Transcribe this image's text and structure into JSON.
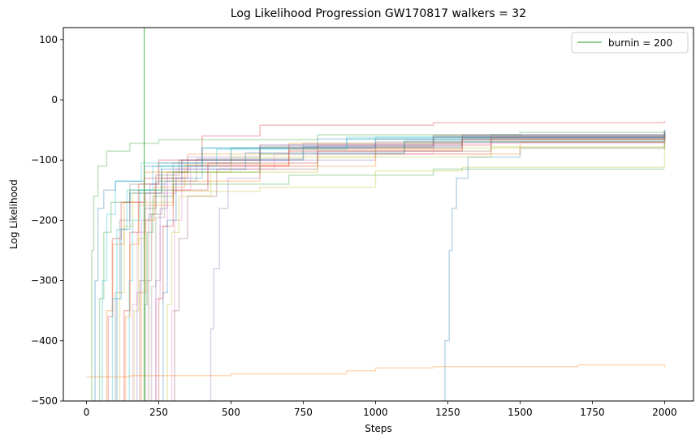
{
  "chart_data": {
    "type": "line",
    "title": "Log Likelihood Progression GW170817 walkers = 32",
    "xlabel": "Steps",
    "ylabel": "Log Likelihood",
    "xlim": [
      -80,
      2100
    ],
    "ylim": [
      -500,
      120
    ],
    "xticks": [
      0,
      250,
      500,
      750,
      1000,
      1250,
      1500,
      1750,
      2000
    ],
    "yticks": [
      -500,
      -400,
      -300,
      -200,
      -100,
      0,
      100
    ],
    "xtick_labels": [
      "0",
      "250",
      "500",
      "750",
      "1000",
      "1250",
      "1500",
      "1750",
      "2000"
    ],
    "ytick_labels": [
      "−500",
      "−400",
      "−300",
      "−200",
      "−100",
      "0",
      "100"
    ],
    "grid": false,
    "legend": {
      "position": "top-right",
      "entries": [
        "burnin = 200"
      ]
    },
    "burnin": {
      "x": 200,
      "label": "burnin = 200",
      "color": "#2ca02c"
    },
    "series_opacity": 0.3,
    "series": [
      {
        "color": "#1f77b4",
        "points": [
          [
            25,
            -500
          ],
          [
            30,
            -300
          ],
          [
            40,
            -180
          ],
          [
            60,
            -150
          ],
          [
            100,
            -135
          ],
          [
            200,
            -110
          ],
          [
            400,
            -80
          ],
          [
            800,
            -65
          ],
          [
            1400,
            -58
          ],
          [
            2000,
            -55
          ]
        ]
      },
      {
        "color": "#ff7f0e",
        "points": [
          [
            60,
            -500
          ],
          [
            70,
            -350
          ],
          [
            90,
            -240
          ],
          [
            130,
            -170
          ],
          [
            200,
            -120
          ],
          [
            350,
            -90
          ],
          [
            700,
            -72
          ],
          [
            1300,
            -62
          ],
          [
            2000,
            -58
          ]
        ]
      },
      {
        "color": "#2ca02c",
        "points": [
          [
            15,
            -500
          ],
          [
            18,
            -250
          ],
          [
            25,
            -160
          ],
          [
            40,
            -110
          ],
          [
            70,
            -85
          ],
          [
            150,
            -72
          ],
          [
            250,
            -66
          ],
          [
            800,
            -58
          ],
          [
            1500,
            -54
          ],
          [
            2000,
            -52
          ]
        ]
      },
      {
        "color": "#d62728",
        "points": [
          [
            120,
            -500
          ],
          [
            130,
            -350
          ],
          [
            150,
            -220
          ],
          [
            180,
            -140
          ],
          [
            250,
            -100
          ],
          [
            400,
            -60
          ],
          [
            600,
            -42
          ],
          [
            1200,
            -38
          ],
          [
            2000,
            -35
          ]
        ]
      },
      {
        "color": "#9467bd",
        "points": [
          [
            230,
            -500
          ],
          [
            240,
            -300
          ],
          [
            255,
            -180
          ],
          [
            280,
            -120
          ],
          [
            350,
            -95
          ],
          [
            600,
            -75
          ],
          [
            1200,
            -62
          ],
          [
            2000,
            -56
          ]
        ]
      },
      {
        "color": "#8c564b",
        "points": [
          [
            210,
            -500
          ],
          [
            215,
            -300
          ],
          [
            225,
            -190
          ],
          [
            260,
            -130
          ],
          [
            330,
            -100
          ],
          [
            600,
            -80
          ],
          [
            1200,
            -60
          ],
          [
            2000,
            -50
          ]
        ]
      },
      {
        "color": "#e377c2",
        "points": [
          [
            290,
            -500
          ],
          [
            295,
            -350
          ],
          [
            305,
            -200
          ],
          [
            330,
            -140
          ],
          [
            420,
            -110
          ],
          [
            800,
            -90
          ],
          [
            1400,
            -70
          ],
          [
            2000,
            -60
          ]
        ]
      },
      {
        "color": "#7f7f7f",
        "points": [
          [
            95,
            -500
          ],
          [
            100,
            -320
          ],
          [
            115,
            -200
          ],
          [
            150,
            -140
          ],
          [
            250,
            -105
          ],
          [
            500,
            -80
          ],
          [
            1000,
            -65
          ],
          [
            2000,
            -55
          ]
        ]
      },
      {
        "color": "#bcbd22",
        "points": [
          [
            160,
            -500
          ],
          [
            165,
            -350
          ],
          [
            180,
            -230
          ],
          [
            200,
            -170
          ],
          [
            300,
            -152
          ],
          [
            600,
            -145
          ],
          [
            1000,
            -118
          ],
          [
            1300,
            -112
          ],
          [
            2000,
            -65
          ]
        ]
      },
      {
        "color": "#17becf",
        "points": [
          [
            140,
            -500
          ],
          [
            148,
            -300
          ],
          [
            160,
            -200
          ],
          [
            185,
            -150
          ],
          [
            260,
            -110
          ],
          [
            500,
            -80
          ],
          [
            1000,
            -62
          ],
          [
            2000,
            -55
          ]
        ]
      },
      {
        "color": "#1f77b4",
        "points": [
          [
            1230,
            -500
          ],
          [
            1240,
            -400
          ],
          [
            1255,
            -250
          ],
          [
            1265,
            -180
          ],
          [
            1280,
            -130
          ],
          [
            1320,
            -95
          ],
          [
            1500,
            -80
          ],
          [
            2000,
            -70
          ]
        ]
      },
      {
        "color": "#ff7f0e",
        "points": [
          [
            0,
            -460
          ],
          [
            150,
            -458
          ],
          [
            500,
            -455
          ],
          [
            900,
            -450
          ],
          [
            1000,
            -445
          ],
          [
            1200,
            -443
          ],
          [
            1700,
            -440
          ],
          [
            1950,
            -440
          ],
          [
            2000,
            -444
          ]
        ]
      },
      {
        "color": "#2ca02c",
        "points": [
          [
            40,
            -500
          ],
          [
            45,
            -330
          ],
          [
            60,
            -220
          ],
          [
            85,
            -170
          ],
          [
            150,
            -150
          ],
          [
            300,
            -140
          ],
          [
            700,
            -125
          ],
          [
            1200,
            -115
          ],
          [
            2000,
            -115
          ]
        ]
      },
      {
        "color": "#d62728",
        "points": [
          [
            70,
            -500
          ],
          [
            75,
            -360
          ],
          [
            90,
            -230
          ],
          [
            120,
            -170
          ],
          [
            200,
            -130
          ],
          [
            350,
            -110
          ],
          [
            700,
            -85
          ],
          [
            1300,
            -65
          ],
          [
            2000,
            -55
          ]
        ]
      },
      {
        "color": "#9467bd",
        "points": [
          [
            425,
            -500
          ],
          [
            430,
            -380
          ],
          [
            440,
            -280
          ],
          [
            460,
            -180
          ],
          [
            490,
            -130
          ],
          [
            600,
            -100
          ],
          [
            1000,
            -70
          ],
          [
            2000,
            -52
          ]
        ]
      },
      {
        "color": "#8c564b",
        "points": [
          [
            180,
            -500
          ],
          [
            185,
            -300
          ],
          [
            200,
            -180
          ],
          [
            240,
            -125
          ],
          [
            320,
            -100
          ],
          [
            600,
            -78
          ],
          [
            1200,
            -62
          ],
          [
            2000,
            -54
          ]
        ]
      },
      {
        "color": "#e377c2",
        "points": [
          [
            235,
            -500
          ],
          [
            240,
            -330
          ],
          [
            255,
            -210
          ],
          [
            280,
            -150
          ],
          [
            360,
            -110
          ],
          [
            700,
            -80
          ],
          [
            1300,
            -65
          ],
          [
            2000,
            -58
          ]
        ]
      },
      {
        "color": "#7f7f7f",
        "points": [
          [
            200,
            -500
          ],
          [
            205,
            -300
          ],
          [
            215,
            -190
          ],
          [
            240,
            -135
          ],
          [
            300,
            -105
          ],
          [
            600,
            -75
          ],
          [
            1200,
            -58
          ],
          [
            2000,
            -50
          ]
        ]
      },
      {
        "color": "#bcbd22",
        "points": [
          [
            110,
            -500
          ],
          [
            115,
            -320
          ],
          [
            130,
            -210
          ],
          [
            160,
            -155
          ],
          [
            260,
            -120
          ],
          [
            500,
            -95
          ],
          [
            1000,
            -80
          ],
          [
            2000,
            -72
          ]
        ]
      },
      {
        "color": "#17becf",
        "points": [
          [
            85,
            -500
          ],
          [
            90,
            -330
          ],
          [
            105,
            -215
          ],
          [
            140,
            -150
          ],
          [
            230,
            -110
          ],
          [
            450,
            -82
          ],
          [
            900,
            -65
          ],
          [
            2000,
            -55
          ]
        ]
      },
      {
        "color": "#1f77b4",
        "points": [
          [
            260,
            -500
          ],
          [
            265,
            -320
          ],
          [
            280,
            -200
          ],
          [
            310,
            -130
          ],
          [
            400,
            -100
          ],
          [
            750,
            -78
          ],
          [
            1300,
            -63
          ],
          [
            2000,
            -56
          ]
        ]
      },
      {
        "color": "#ff7f0e",
        "points": [
          [
            130,
            -500
          ],
          [
            135,
            -360
          ],
          [
            150,
            -240
          ],
          [
            180,
            -175
          ],
          [
            300,
            -135
          ],
          [
            600,
            -110
          ],
          [
            1000,
            -90
          ],
          [
            1500,
            -70
          ],
          [
            2000,
            -62
          ]
        ]
      },
      {
        "color": "#2ca02c",
        "points": [
          [
            195,
            -500
          ],
          [
            200,
            -340
          ],
          [
            210,
            -220
          ],
          [
            230,
            -160
          ],
          [
            300,
            -120
          ],
          [
            600,
            -90
          ],
          [
            1100,
            -70
          ],
          [
            2000,
            -58
          ]
        ]
      },
      {
        "color": "#d62728",
        "points": [
          [
            245,
            -500
          ],
          [
            250,
            -330
          ],
          [
            265,
            -210
          ],
          [
            300,
            -150
          ],
          [
            420,
            -105
          ],
          [
            800,
            -75
          ],
          [
            1400,
            -62
          ],
          [
            2000,
            -55
          ]
        ]
      },
      {
        "color": "#9467bd",
        "points": [
          [
            170,
            -500
          ],
          [
            175,
            -320
          ],
          [
            190,
            -200
          ],
          [
            220,
            -140
          ],
          [
            330,
            -100
          ],
          [
            700,
            -75
          ],
          [
            1300,
            -60
          ],
          [
            2000,
            -52
          ]
        ]
      },
      {
        "color": "#8c564b",
        "points": [
          [
            300,
            -500
          ],
          [
            305,
            -350
          ],
          [
            320,
            -230
          ],
          [
            350,
            -160
          ],
          [
            450,
            -115
          ],
          [
            800,
            -85
          ],
          [
            1400,
            -65
          ],
          [
            2000,
            -56
          ]
        ]
      },
      {
        "color": "#e377c2",
        "points": [
          [
            155,
            -500
          ],
          [
            160,
            -340
          ],
          [
            175,
            -220
          ],
          [
            205,
            -155
          ],
          [
            310,
            -115
          ],
          [
            650,
            -90
          ],
          [
            1200,
            -72
          ],
          [
            2000,
            -62
          ]
        ]
      },
      {
        "color": "#7f7f7f",
        "points": [
          [
            220,
            -500
          ],
          [
            225,
            -310
          ],
          [
            240,
            -195
          ],
          [
            270,
            -135
          ],
          [
            380,
            -98
          ],
          [
            750,
            -72
          ],
          [
            1300,
            -58
          ],
          [
            2000,
            -50
          ]
        ]
      },
      {
        "color": "#bcbd22",
        "points": [
          [
            275,
            -500
          ],
          [
            280,
            -340
          ],
          [
            295,
            -220
          ],
          [
            320,
            -160
          ],
          [
            430,
            -120
          ],
          [
            800,
            -95
          ],
          [
            1400,
            -78
          ],
          [
            2000,
            -68
          ]
        ]
      },
      {
        "color": "#17becf",
        "points": [
          [
            50,
            -500
          ],
          [
            55,
            -300
          ],
          [
            70,
            -190
          ],
          [
            100,
            -135
          ],
          [
            190,
            -105
          ],
          [
            400,
            -80
          ],
          [
            900,
            -62
          ],
          [
            2000,
            -52
          ]
        ]
      },
      {
        "color": "#1f77b4",
        "points": [
          [
            100,
            -500
          ],
          [
            105,
            -330
          ],
          [
            120,
            -215
          ],
          [
            150,
            -155
          ],
          [
            260,
            -115
          ],
          [
            550,
            -88
          ],
          [
            1100,
            -68
          ],
          [
            2000,
            -57
          ]
        ]
      },
      {
        "color": "#ff7f0e",
        "points": [
          [
            185,
            -500
          ],
          [
            190,
            -320
          ],
          [
            205,
            -200
          ],
          [
            235,
            -145
          ],
          [
            340,
            -108
          ],
          [
            700,
            -82
          ],
          [
            1300,
            -66
          ],
          [
            2000,
            -58
          ]
        ]
      }
    ]
  }
}
